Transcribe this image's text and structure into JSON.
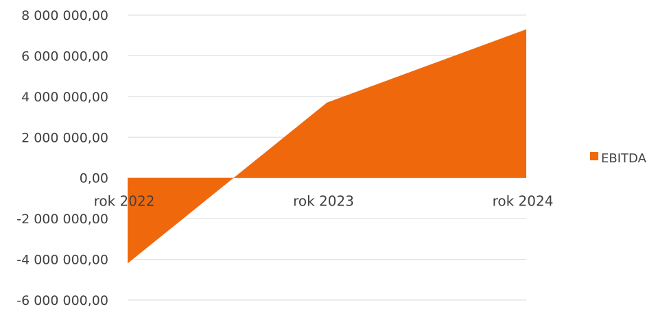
{
  "chart_data": {
    "type": "area",
    "categories": [
      "rok 2022",
      "rok 2023",
      "rok 2024"
    ],
    "series": [
      {
        "name": "EBITDA",
        "values": [
          -4200000,
          3700000,
          7300000
        ],
        "color": "#f0680c"
      }
    ],
    "ylim": [
      -6000000,
      8000000
    ],
    "yticks": [
      8000000,
      6000000,
      4000000,
      2000000,
      0,
      -2000000,
      -4000000,
      -6000000
    ],
    "ytick_labels": [
      "8 000 000,00",
      "6 000 000,00",
      "4 000 000,00",
      "2 000 000,00",
      "0,00",
      "-2 000 000,00",
      "-4 000 000,00",
      "-6 000 000,00"
    ],
    "grid": true,
    "legend": "right",
    "legend_label": "EBITDA"
  }
}
